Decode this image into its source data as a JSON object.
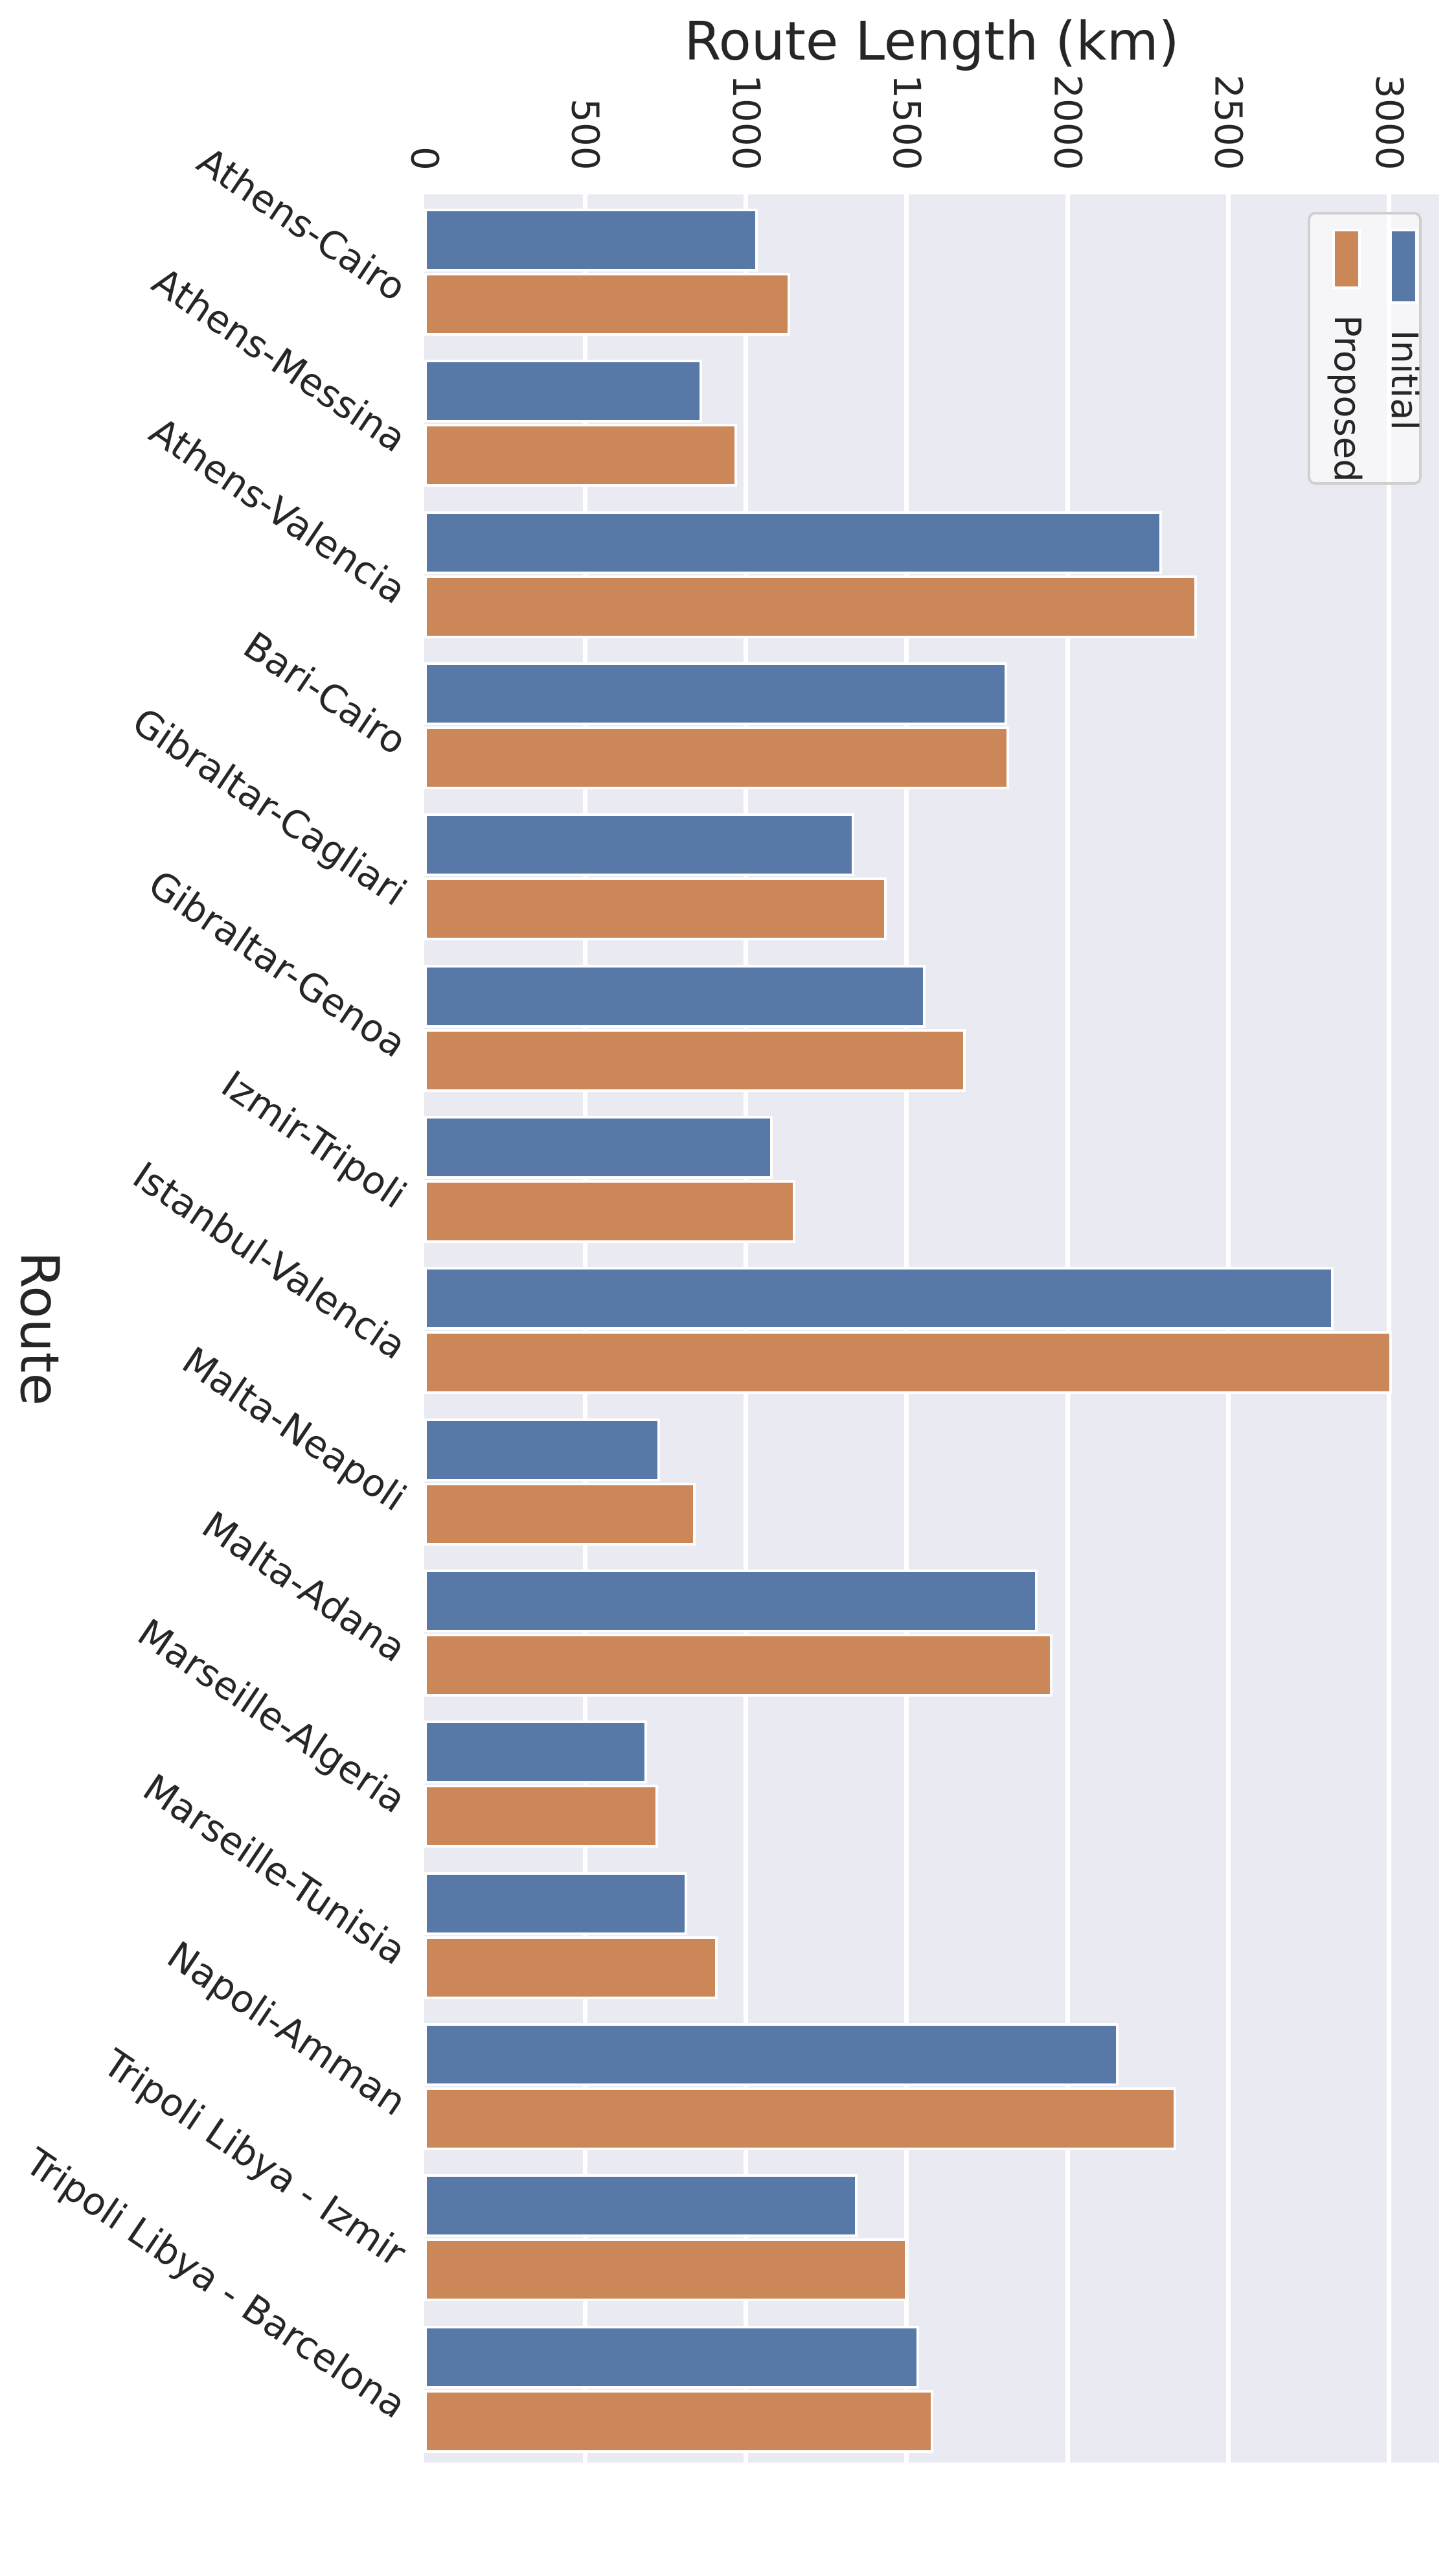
{
  "header": {
    "title": "Route Length (km)",
    "route_axis_label": "Route"
  },
  "colors": {
    "initial": "#5878A8",
    "proposed": "#CC8759",
    "plot_background": "#EAEAF2",
    "gridline": "#FFFFFF",
    "text": "#262626",
    "legend_border": "#CFCFCF"
  },
  "legend": {
    "position": "upper right",
    "entries": [
      {
        "label": "Proposed",
        "series": "Proposed"
      },
      {
        "label": "Initial",
        "series": "Initial"
      }
    ]
  },
  "chart_data": {
    "type": "bar",
    "orientation": "horizontal",
    "title": "Route Length (km)",
    "xlabel": "Route Length (km)",
    "ylabel": "Route",
    "categories": [
      "Athens-Cairo",
      "Athens-Messina",
      "Athens-Valencia",
      "Bari-Cairo",
      "Gibraltar-Cagliari",
      "Gibraltar-Genoa",
      "Izmir-Tripoli",
      "Istanbul-Valencia",
      "Malta-Neapoli",
      "Malta-Adana",
      "Marseille-Algeria",
      "Marseille-Tunisia",
      "Napoli-Amman",
      "Tripoli Libya - Izmir",
      "Tripoli Libya - Barcelona"
    ],
    "series": [
      {
        "name": "Initial",
        "color": "#5878A8",
        "values": [
          1030,
          855,
          2285,
          1805,
          1330,
          1550,
          1075,
          2820,
          725,
          1900,
          685,
          810,
          2150,
          1340,
          1530
        ]
      },
      {
        "name": "Proposed",
        "color": "#CC8759",
        "values": [
          1130,
          965,
          2395,
          1810,
          1430,
          1675,
          1145,
          3000,
          835,
          1945,
          720,
          905,
          2330,
          1495,
          1575
        ]
      }
    ],
    "xticks": [
      0,
      500,
      1000,
      1500,
      2000,
      2500,
      3000
    ],
    "xlim": [
      0,
      3156
    ],
    "grid": true,
    "legend_position": "upper right"
  }
}
